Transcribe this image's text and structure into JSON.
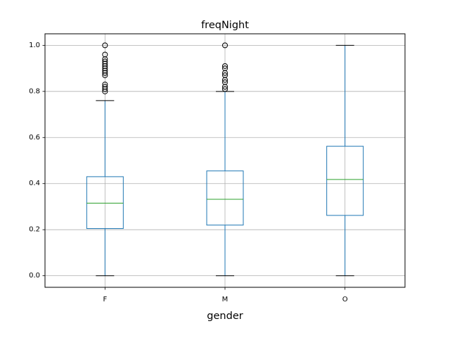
{
  "chart_data": {
    "type": "box",
    "title": "freqNight",
    "xlabel": "gender",
    "ylabel": "",
    "ylim": [
      -0.05,
      1.05
    ],
    "yticks": [
      0.0,
      0.2,
      0.4,
      0.6,
      0.8,
      1.0
    ],
    "ytick_labels": [
      "0.0",
      "0.2",
      "0.4",
      "0.6",
      "0.8",
      "1.0"
    ],
    "grid": true,
    "categories": [
      "F",
      "M",
      "O"
    ],
    "boxes": [
      {
        "category": "F",
        "whisker_low": 0.0,
        "q1": 0.205,
        "median": 0.315,
        "q3": 0.43,
        "whisker_high": 0.76,
        "outliers": [
          0.8,
          0.81,
          0.82,
          0.83,
          0.87,
          0.88,
          0.89,
          0.9,
          0.91,
          0.92,
          0.93,
          0.94,
          0.96,
          1.0
        ]
      },
      {
        "category": "M",
        "whisker_low": 0.0,
        "q1": 0.22,
        "median": 0.332,
        "q3": 0.455,
        "whisker_high": 0.8,
        "outliers": [
          0.81,
          0.82,
          0.84,
          0.85,
          0.87,
          0.88,
          0.9,
          0.91,
          1.0
        ]
      },
      {
        "category": "O",
        "whisker_low": 0.0,
        "q1": 0.262,
        "median": 0.418,
        "q3": 0.562,
        "whisker_high": 1.0,
        "outliers": []
      }
    ],
    "colors": {
      "box": "#1f77b4",
      "median": "#2ca02c",
      "whisker_cap": "#000000",
      "grid": "#b0b0b0",
      "outlier_edge": "#000000"
    }
  }
}
